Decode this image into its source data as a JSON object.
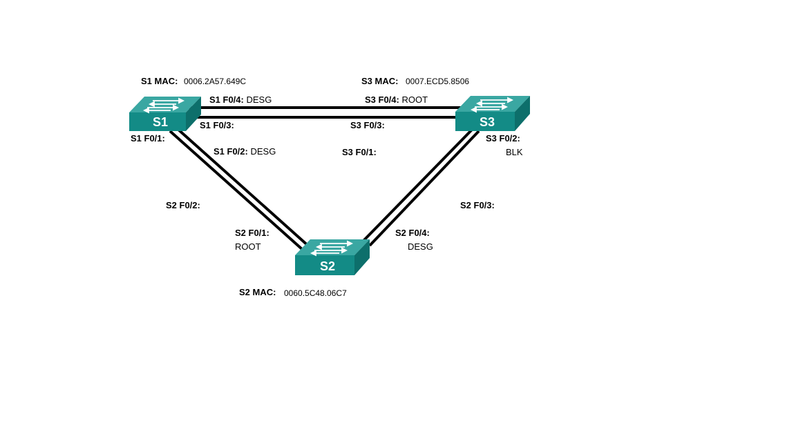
{
  "colors": {
    "link": "#000000",
    "switch_top": "#3aa7a2",
    "switch_front": "#138b86",
    "switch_side": "#0d6f6b",
    "switch_arrow": "#ffffff"
  },
  "switches": {
    "s1": {
      "name": "S1",
      "mac_label": "S1 MAC:",
      "mac_value": "0006.2A57.649C"
    },
    "s2": {
      "name": "S2",
      "mac_label": "S2 MAC:",
      "mac_value": "0060.5C48.06C7"
    },
    "s3": {
      "name": "S3",
      "mac_label": "S3 MAC:",
      "mac_value": "0007.ECD5.8506"
    }
  },
  "ports": {
    "s1_f04": {
      "port": "S1 F0/4:",
      "role": "DESG"
    },
    "s1_f03": {
      "port": "S1 F0/3:",
      "role": ""
    },
    "s1_f01": {
      "port": "S1 F0/1:",
      "role": ""
    },
    "s1_f02": {
      "port": "S1 F0/2:",
      "role": "DESG"
    },
    "s3_f04": {
      "port": "S3 F0/4:",
      "role": "ROOT"
    },
    "s3_f03": {
      "port": "S3 F0/3:",
      "role": ""
    },
    "s3_f01": {
      "port": "S3 F0/1:",
      "role": ""
    },
    "s3_f02": {
      "port": "S3 F0/2:",
      "role": "BLK"
    },
    "s2_f02": {
      "port": "S2 F0/2:",
      "role": ""
    },
    "s2_f01": {
      "port": "S2 F0/1:",
      "role": "ROOT"
    },
    "s2_f04": {
      "port": "S2 F0/4:",
      "role": "DESG"
    },
    "s2_f03": {
      "port": "S2 F0/3:",
      "role": ""
    }
  }
}
